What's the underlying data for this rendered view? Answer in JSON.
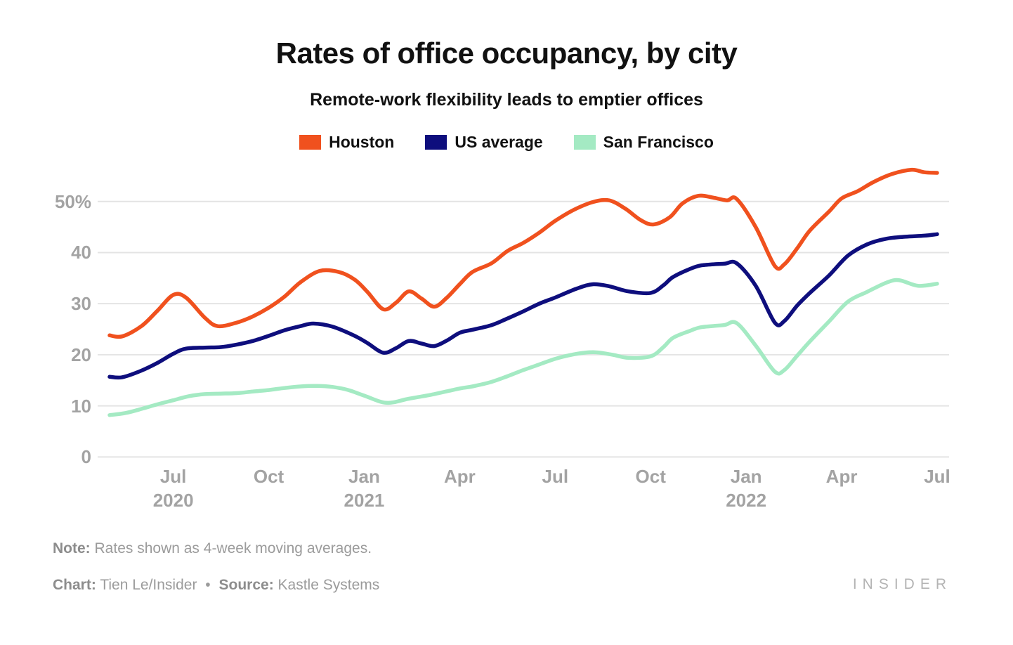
{
  "header": {
    "title": "Rates of office occupancy, by city",
    "subtitle": "Remote-work flexibility leads to emptier offices"
  },
  "chart_data": {
    "type": "line",
    "title": "Rates of office occupancy, by city",
    "subtitle": "Remote-work flexibility leads to emptier offices",
    "unit": "percent occupancy",
    "x_unit": "months since May 2020 (weekly 4-week moving averages)",
    "grid": true,
    "grid_color": "#e4e4e4",
    "legend_position": "top-center",
    "ylim": [
      0,
      58
    ],
    "y_ticks": [
      {
        "v": 0,
        "label": "0"
      },
      {
        "v": 10,
        "label": "10"
      },
      {
        "v": 20,
        "label": "20"
      },
      {
        "v": 30,
        "label": "30"
      },
      {
        "v": 40,
        "label": "40"
      },
      {
        "v": 50,
        "label": "50%"
      }
    ],
    "x_ticks": [
      {
        "t": 2,
        "label": "Jul",
        "year": "2020"
      },
      {
        "t": 5,
        "label": "Oct"
      },
      {
        "t": 8,
        "label": "Jan",
        "year": "2021"
      },
      {
        "t": 11,
        "label": "Apr"
      },
      {
        "t": 14,
        "label": "Jul"
      },
      {
        "t": 17,
        "label": "Oct"
      },
      {
        "t": 20,
        "label": "Jan",
        "year": "2022"
      },
      {
        "t": 23,
        "label": "Apr"
      },
      {
        "t": 26,
        "label": "Jul"
      }
    ],
    "series": [
      {
        "name": "Houston",
        "color": "#f0511e",
        "points": [
          [
            0,
            23.8
          ],
          [
            0.4,
            23.6
          ],
          [
            1,
            25.6
          ],
          [
            1.5,
            28.6
          ],
          [
            2,
            31.7
          ],
          [
            2.4,
            31.2
          ],
          [
            3,
            27.2
          ],
          [
            3.4,
            25.6
          ],
          [
            4,
            26.3
          ],
          [
            4.5,
            27.5
          ],
          [
            5,
            29.2
          ],
          [
            5.5,
            31.4
          ],
          [
            6,
            34.2
          ],
          [
            6.6,
            36.4
          ],
          [
            7.2,
            36.2
          ],
          [
            7.7,
            34.7
          ],
          [
            8.1,
            32.3
          ],
          [
            8.6,
            28.9
          ],
          [
            9,
            30.2
          ],
          [
            9.4,
            32.4
          ],
          [
            9.8,
            31.0
          ],
          [
            10.2,
            29.4
          ],
          [
            10.6,
            31.2
          ],
          [
            11,
            33.8
          ],
          [
            11.4,
            36.2
          ],
          [
            12,
            37.9
          ],
          [
            12.5,
            40.3
          ],
          [
            13,
            41.9
          ],
          [
            13.5,
            43.9
          ],
          [
            14,
            46.2
          ],
          [
            14.6,
            48.4
          ],
          [
            15.2,
            49.9
          ],
          [
            15.7,
            50.2
          ],
          [
            16.2,
            48.6
          ],
          [
            16.7,
            46.3
          ],
          [
            17.1,
            45.5
          ],
          [
            17.6,
            46.9
          ],
          [
            18,
            49.6
          ],
          [
            18.5,
            51.1
          ],
          [
            19,
            50.7
          ],
          [
            19.4,
            50.2
          ],
          [
            19.7,
            50.5
          ],
          [
            20.3,
            45.0
          ],
          [
            20.9,
            37.4
          ],
          [
            21.2,
            37.7
          ],
          [
            21.6,
            40.8
          ],
          [
            22,
            44.3
          ],
          [
            22.6,
            48.0
          ],
          [
            23,
            50.6
          ],
          [
            23.5,
            52.0
          ],
          [
            24,
            53.8
          ],
          [
            24.6,
            55.4
          ],
          [
            25.2,
            56.2
          ],
          [
            25.6,
            55.7
          ],
          [
            26,
            55.6
          ]
        ]
      },
      {
        "name": "US average",
        "color": "#0e0e7d",
        "points": [
          [
            0,
            15.7
          ],
          [
            0.4,
            15.6
          ],
          [
            1,
            16.9
          ],
          [
            1.5,
            18.4
          ],
          [
            2,
            20.2
          ],
          [
            2.4,
            21.2
          ],
          [
            3,
            21.4
          ],
          [
            3.5,
            21.5
          ],
          [
            4,
            22.0
          ],
          [
            4.5,
            22.7
          ],
          [
            5,
            23.7
          ],
          [
            5.5,
            24.8
          ],
          [
            6,
            25.6
          ],
          [
            6.4,
            26.1
          ],
          [
            7,
            25.5
          ],
          [
            7.7,
            23.7
          ],
          [
            8.1,
            22.3
          ],
          [
            8.6,
            20.4
          ],
          [
            9,
            21.3
          ],
          [
            9.4,
            22.7
          ],
          [
            9.8,
            22.2
          ],
          [
            10.2,
            21.7
          ],
          [
            10.6,
            22.8
          ],
          [
            11,
            24.3
          ],
          [
            11.4,
            24.9
          ],
          [
            12,
            25.8
          ],
          [
            12.5,
            27.1
          ],
          [
            13,
            28.5
          ],
          [
            13.5,
            30.0
          ],
          [
            14,
            31.2
          ],
          [
            14.7,
            33.0
          ],
          [
            15.2,
            33.8
          ],
          [
            15.7,
            33.4
          ],
          [
            16.3,
            32.4
          ],
          [
            17,
            32.1
          ],
          [
            17.4,
            33.6
          ],
          [
            17.7,
            35.2
          ],
          [
            18.2,
            36.7
          ],
          [
            18.6,
            37.5
          ],
          [
            19.3,
            37.8
          ],
          [
            19.7,
            37.9
          ],
          [
            20.3,
            33.5
          ],
          [
            20.9,
            26.3
          ],
          [
            21.2,
            26.6
          ],
          [
            21.6,
            29.6
          ],
          [
            22,
            32.1
          ],
          [
            22.6,
            35.5
          ],
          [
            23.2,
            39.4
          ],
          [
            23.8,
            41.6
          ],
          [
            24.4,
            42.7
          ],
          [
            25,
            43.1
          ],
          [
            25.6,
            43.3
          ],
          [
            26,
            43.6
          ]
        ]
      },
      {
        "name": "San Francisco",
        "color": "#a4eac3",
        "points": [
          [
            0,
            8.2
          ],
          [
            0.5,
            8.6
          ],
          [
            1,
            9.4
          ],
          [
            1.5,
            10.3
          ],
          [
            2,
            11.1
          ],
          [
            2.5,
            11.9
          ],
          [
            3,
            12.3
          ],
          [
            3.5,
            12.4
          ],
          [
            4,
            12.5
          ],
          [
            4.5,
            12.8
          ],
          [
            5,
            13.1
          ],
          [
            5.5,
            13.5
          ],
          [
            6,
            13.8
          ],
          [
            6.5,
            13.9
          ],
          [
            7,
            13.7
          ],
          [
            7.5,
            13.1
          ],
          [
            8,
            12.0
          ],
          [
            8.7,
            10.6
          ],
          [
            9.4,
            11.4
          ],
          [
            10.2,
            12.3
          ],
          [
            11,
            13.4
          ],
          [
            11.4,
            13.8
          ],
          [
            12,
            14.7
          ],
          [
            12.5,
            15.8
          ],
          [
            13,
            17.0
          ],
          [
            13.5,
            18.1
          ],
          [
            14,
            19.2
          ],
          [
            14.6,
            20.1
          ],
          [
            15.2,
            20.5
          ],
          [
            15.8,
            20.0
          ],
          [
            16.3,
            19.4
          ],
          [
            17,
            19.7
          ],
          [
            17.4,
            21.5
          ],
          [
            17.7,
            23.3
          ],
          [
            18.2,
            24.6
          ],
          [
            18.6,
            25.4
          ],
          [
            19.3,
            25.8
          ],
          [
            19.7,
            26.2
          ],
          [
            20.3,
            21.8
          ],
          [
            20.9,
            16.7
          ],
          [
            21.2,
            17.0
          ],
          [
            21.6,
            19.8
          ],
          [
            22,
            22.6
          ],
          [
            22.6,
            26.5
          ],
          [
            23.2,
            30.4
          ],
          [
            23.8,
            32.3
          ],
          [
            24.4,
            34.1
          ],
          [
            24.8,
            34.6
          ],
          [
            25.4,
            33.5
          ],
          [
            26,
            33.9
          ]
        ]
      }
    ]
  },
  "footer": {
    "note_label": "Note:",
    "note_text": "Rates shown as 4-week moving averages.",
    "chart_label": "Chart:",
    "chart_text": "Tien Le/Insider",
    "separator": "•",
    "source_label": "Source:",
    "source_text": "Kastle Systems",
    "brand": "INSIDER"
  }
}
